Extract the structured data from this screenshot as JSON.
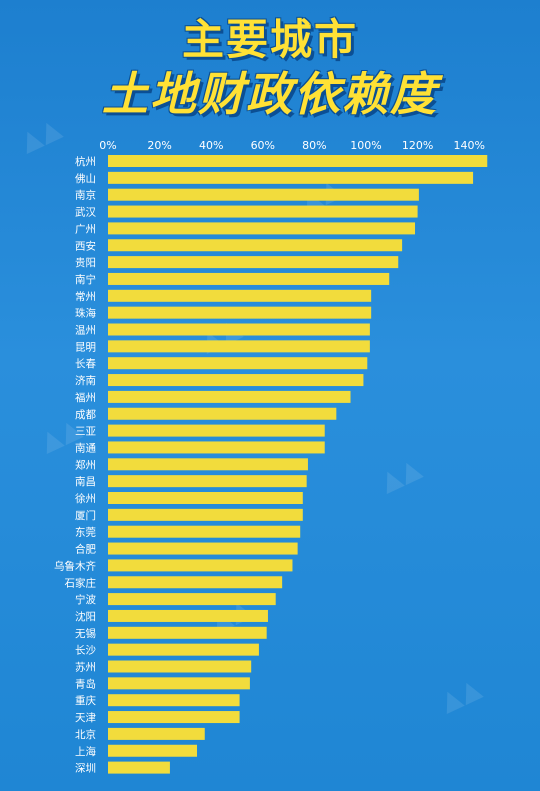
{
  "title_lines": [
    "主要城市",
    "土地财政依赖度"
  ],
  "colors": {
    "bar": "#f2dc3c",
    "text": "#ffffff",
    "title": "#ffe135",
    "background": "#1f86d4"
  },
  "chart_data": {
    "type": "bar",
    "orientation": "horizontal",
    "title": "主要城市土地财政依赖度",
    "xlabel": "",
    "ylabel": "",
    "xlim": [
      0,
      1.46
    ],
    "x_ticks": [
      0,
      0.2,
      0.4,
      0.6,
      0.8,
      1.0,
      1.2,
      1.4
    ],
    "x_tick_labels": [
      "0%",
      "20%",
      "40%",
      "60%",
      "80%",
      "100%",
      "120%",
      "140%"
    ],
    "x_axis_position": "top",
    "grid": false,
    "categories": [
      "杭州",
      "佛山",
      "南京",
      "武汉",
      "广州",
      "西安",
      "贵阳",
      "南宁",
      "常州",
      "珠海",
      "温州",
      "昆明",
      "长春",
      "济南",
      "福州",
      "成都",
      "三亚",
      "南通",
      "郑州",
      "南昌",
      "徐州",
      "厦门",
      "东莞",
      "合肥",
      "乌鲁木齐",
      "石家庄",
      "宁波",
      "沈阳",
      "无锡",
      "长沙",
      "苏州",
      "青岛",
      "重庆",
      "天津",
      "北京",
      "上海",
      "深圳"
    ],
    "values": [
      1.47,
      1.415,
      1.205,
      1.2,
      1.19,
      1.14,
      1.125,
      1.09,
      1.02,
      1.02,
      1.015,
      1.015,
      1.005,
      0.99,
      0.94,
      0.885,
      0.84,
      0.84,
      0.775,
      0.77,
      0.755,
      0.755,
      0.745,
      0.735,
      0.715,
      0.675,
      0.65,
      0.62,
      0.615,
      0.585,
      0.555,
      0.55,
      0.51,
      0.51,
      0.375,
      0.345,
      0.24
    ]
  }
}
